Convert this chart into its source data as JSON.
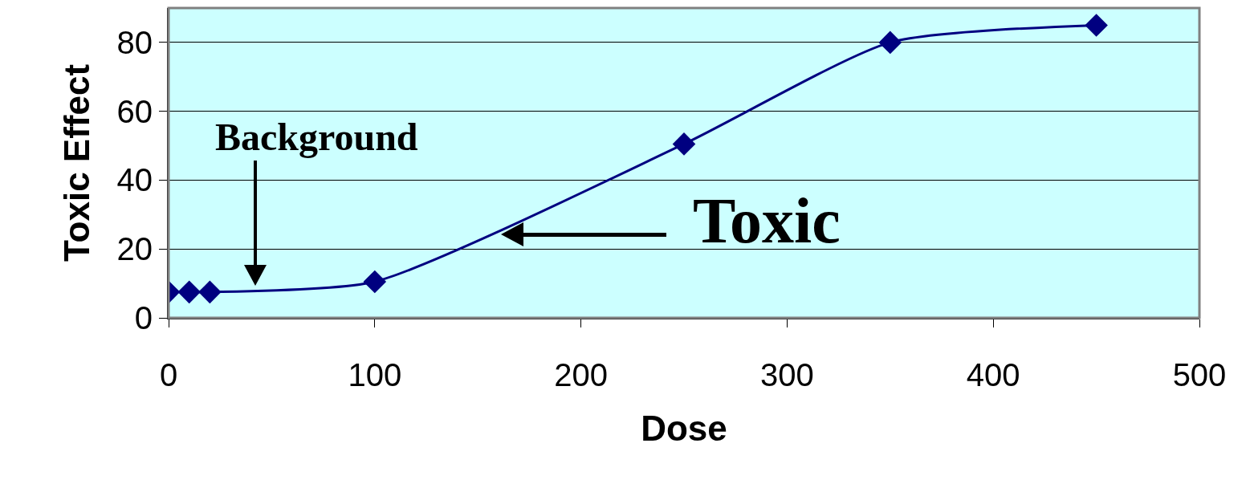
{
  "chart_data": {
    "type": "line",
    "xlabel": "Dose",
    "ylabel": "Toxic Effect",
    "x": [
      0,
      10,
      20,
      100,
      250,
      350,
      450
    ],
    "series": [
      {
        "color": "#000080",
        "values": [
          7.5,
          7.5,
          7.5,
          10.5,
          50.5,
          80,
          85
        ]
      }
    ],
    "xlim": [
      0,
      500
    ],
    "xticks": [
      0,
      100,
      200,
      300,
      400,
      500
    ],
    "ylim": [
      0,
      90
    ],
    "yticks": [
      0,
      20,
      40,
      60,
      80
    ],
    "grid": "y",
    "marker": "diamond",
    "line_style": "solid",
    "annotations": [
      "Background",
      "Toxic"
    ]
  }
}
